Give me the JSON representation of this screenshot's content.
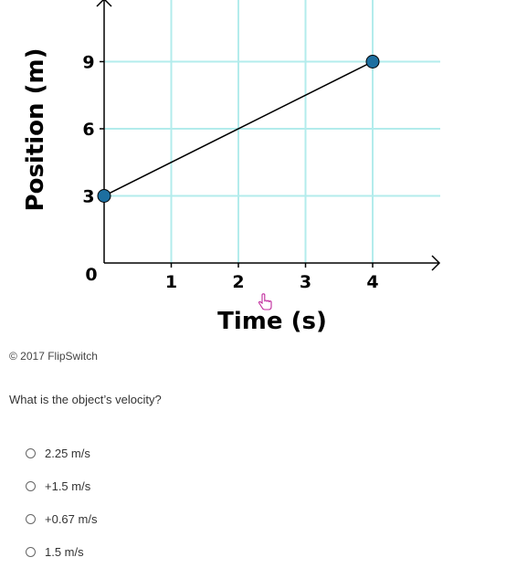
{
  "chart_data": {
    "type": "line",
    "xlabel": "Time (s)",
    "ylabel": "Position (m)",
    "xlim": [
      0,
      5
    ],
    "ylim": [
      0,
      12
    ],
    "x_ticks": [
      "1",
      "2",
      "3",
      "4"
    ],
    "y_ticks": [
      "3",
      "6",
      "9"
    ],
    "origin_label": "0",
    "grid": true,
    "series": [
      {
        "x": [
          0,
          4
        ],
        "y": [
          3,
          9
        ]
      }
    ],
    "colors": {
      "grid": "#b3ecec",
      "line": "#000000",
      "point": "#1d6fa0"
    }
  },
  "copyright": "© 2017 FlipSwitch",
  "question": "What is the object’s velocity?",
  "options": [
    {
      "label": "2.25 m/s"
    },
    {
      "label": "+1.5 m/s"
    },
    {
      "label": "+0.67 m/s"
    },
    {
      "label": "1.5 m/s"
    }
  ],
  "cursor_icon": "hand-pointer-icon"
}
